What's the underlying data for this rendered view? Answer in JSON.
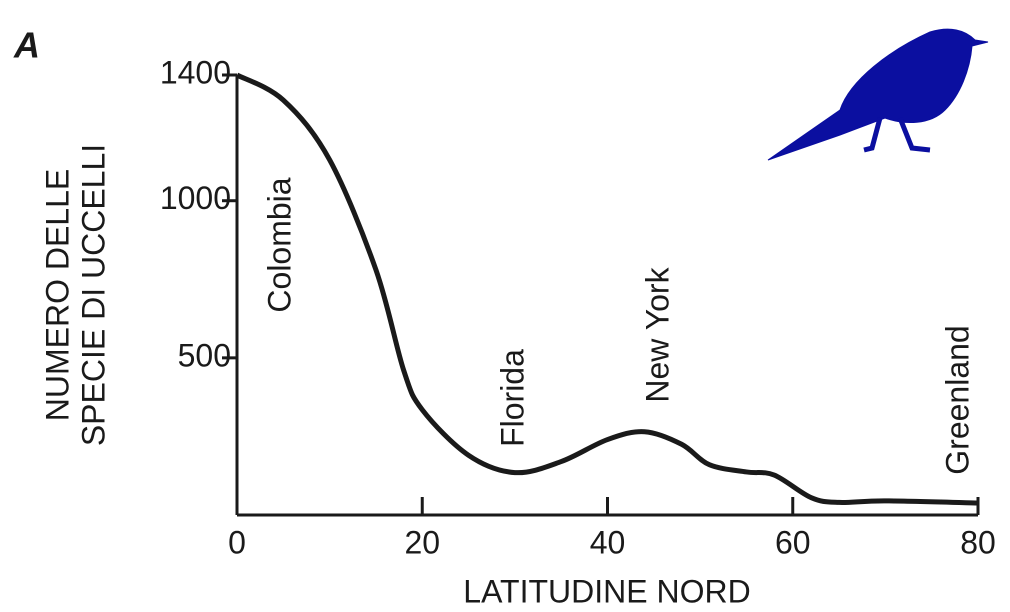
{
  "chart_data": {
    "type": "line",
    "panel_label": "A",
    "x_label": "LATITUDINE NORD",
    "y_label": [
      "NUMERO DELLE",
      "SPECIE DI UCCELLI"
    ],
    "x": [
      0,
      5,
      10,
      15,
      18,
      20,
      25,
      30,
      35,
      40,
      44,
      48,
      51,
      55,
      58,
      62,
      65,
      70,
      80
    ],
    "series": [
      {
        "color": "#1a1a1a",
        "values": [
          1400,
          1320,
          1130,
          780,
          460,
          335,
          190,
          135,
          170,
          240,
          265,
          225,
          160,
          137,
          127,
          55,
          40,
          45,
          38
        ]
      }
    ],
    "annotations": [
      "Colombia",
      "Florida",
      "New York",
      "Greenland"
    ],
    "xlim": [
      0,
      80
    ],
    "xticks": [
      0,
      20,
      40,
      60,
      80
    ],
    "ylim": [
      0,
      1400
    ],
    "yticks": [
      500,
      1000,
      1400
    ]
  }
}
